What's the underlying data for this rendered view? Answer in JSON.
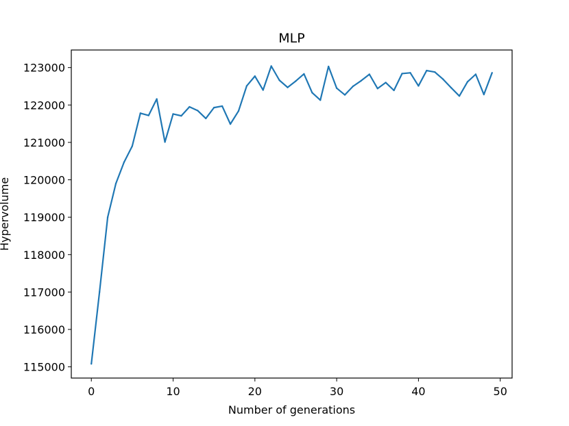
{
  "chart_data": {
    "type": "line",
    "title": "MLP",
    "xlabel": "Number of generations",
    "ylabel": "Hypervolume",
    "xlim": [
      -2.45,
      51.45
    ],
    "ylim": [
      114700,
      123470
    ],
    "xticks": [
      0,
      10,
      20,
      30,
      40,
      50
    ],
    "yticks": [
      115000,
      116000,
      117000,
      118000,
      119000,
      120000,
      121000,
      122000,
      123000
    ],
    "xtick_labels": [
      "0",
      "10",
      "20",
      "30",
      "40",
      "50"
    ],
    "ytick_labels": [
      "115000",
      "116000",
      "117000",
      "118000",
      "119000",
      "120000",
      "121000",
      "122000",
      "123000"
    ],
    "grid": false,
    "legend": "none",
    "series": [
      {
        "color": "#1f77b4",
        "x": [
          0,
          1,
          2,
          3,
          4,
          5,
          6,
          7,
          8,
          9,
          10,
          11,
          12,
          13,
          14,
          15,
          16,
          17,
          18,
          19,
          20,
          21,
          22,
          23,
          24,
          25,
          26,
          27,
          28,
          29,
          30,
          31,
          32,
          33,
          34,
          35,
          36,
          37,
          38,
          39,
          40,
          41,
          42,
          43,
          44,
          45,
          46,
          47,
          48,
          49
        ],
        "y": [
          115080,
          117000,
          119000,
          119900,
          120470,
          120900,
          121780,
          121720,
          122160,
          121010,
          121760,
          121710,
          121950,
          121850,
          121640,
          121930,
          121970,
          121490,
          121840,
          122510,
          122770,
          122400,
          123040,
          122660,
          122470,
          122640,
          122830,
          122330,
          122130,
          123030,
          122450,
          122270,
          122500,
          122650,
          122820,
          122440,
          122600,
          122390,
          122840,
          122860,
          122510,
          122920,
          122880,
          122690,
          122460,
          122240,
          122620,
          122820,
          122280,
          122860
        ]
      }
    ]
  }
}
